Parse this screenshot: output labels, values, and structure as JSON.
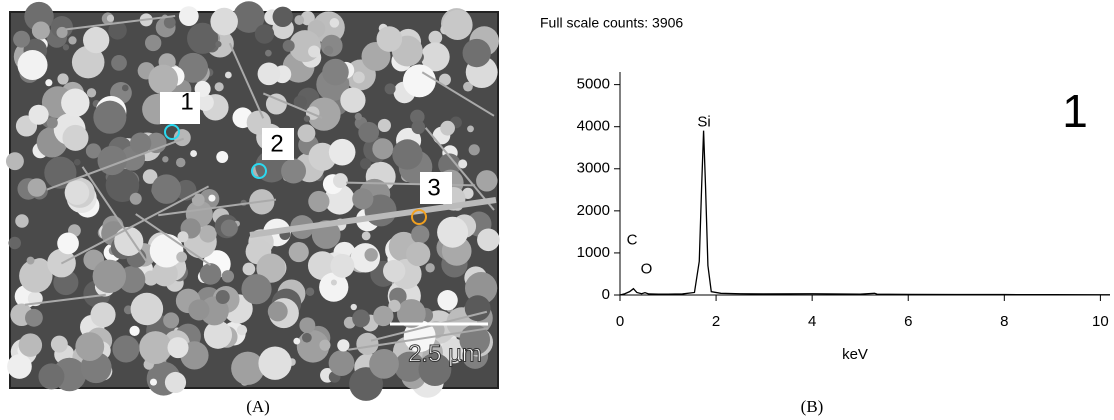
{
  "image": {
    "markers": [
      "1",
      "2",
      "3"
    ],
    "scale_bar": "2.5 µm",
    "caption": "(A)"
  },
  "chart_data": {
    "type": "line",
    "title": "Full scale counts: 3906",
    "inset_label": "1",
    "caption": "(B)",
    "xlabel": "keV",
    "x": [
      0,
      0.1,
      0.2,
      0.28,
      0.35,
      0.45,
      0.52,
      0.6,
      0.8,
      1.0,
      1.3,
      1.55,
      1.65,
      1.7,
      1.74,
      1.78,
      1.83,
      1.9,
      2.1,
      2.5,
      3,
      4,
      5,
      5.3,
      5.35,
      6,
      7,
      8,
      9,
      10,
      10.2
    ],
    "series": [
      {
        "color": "#000000",
        "values": [
          0,
          30,
          80,
          150,
          60,
          30,
          55,
          25,
          20,
          20,
          25,
          60,
          800,
          2600,
          3906,
          2600,
          700,
          80,
          40,
          30,
          25,
          30,
          20,
          40,
          20,
          15,
          10,
          10,
          8,
          5,
          5
        ]
      }
    ],
    "annotations": [
      {
        "text": "C",
        "x": 0.25,
        "y": 1300
      },
      {
        "text": "O",
        "x": 0.55,
        "y": 600
      },
      {
        "text": "Si",
        "x": 1.75,
        "y": 4100
      }
    ],
    "xlim": [
      0,
      10.2
    ],
    "xticks": [
      0,
      2,
      4,
      6,
      8,
      10
    ],
    "ylim": [
      0,
      5300
    ],
    "yticks": [
      0,
      1000,
      2000,
      3000,
      4000,
      5000
    ]
  }
}
